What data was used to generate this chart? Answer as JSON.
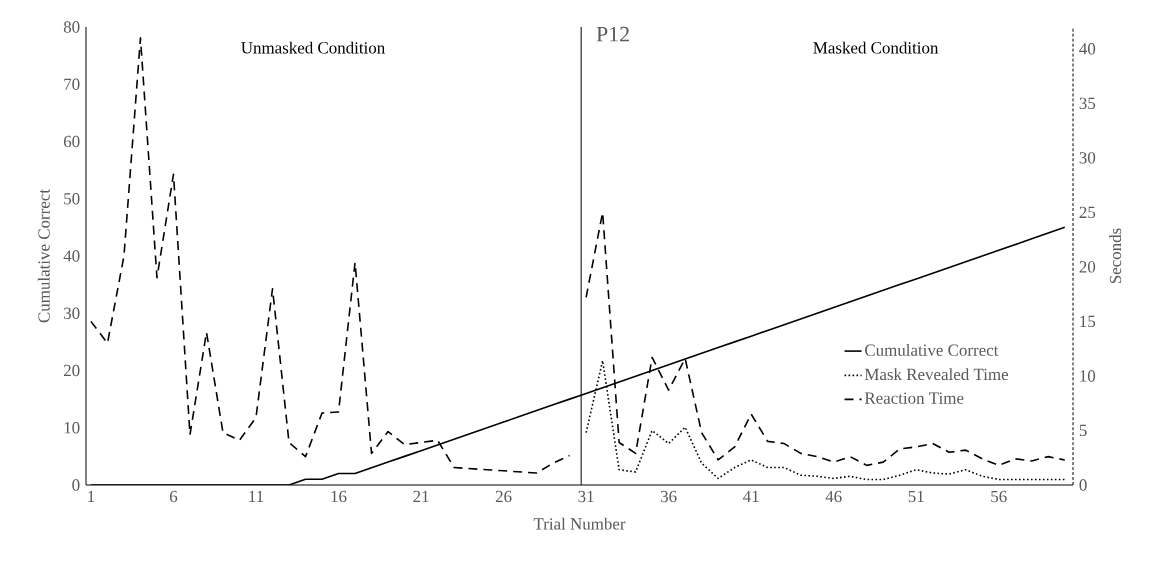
{
  "chart_data": {
    "type": "line",
    "title": "P12",
    "xlabel": "Trial Number",
    "ylabel": "Cumulative Correct",
    "y2label": "Seconds",
    "annotations": [
      "Unmasked Condition",
      "Masked Condition"
    ],
    "xlim": [
      0.7,
      60.5
    ],
    "xticks": [
      1,
      6,
      11,
      16,
      21,
      26,
      31,
      36,
      41,
      46,
      51,
      56
    ],
    "ylim": [
      0,
      80
    ],
    "yticks": [
      0,
      10,
      20,
      30,
      40,
      50,
      60,
      70,
      80
    ],
    "y2lim": [
      0,
      42
    ],
    "y2ticks": [
      0,
      5,
      10,
      15,
      20,
      25,
      30,
      35,
      40
    ],
    "ref_lines": [
      {
        "axis": "x",
        "value": 30.7,
        "color": "#000000",
        "line_style": "solid"
      }
    ],
    "legend": "right",
    "series": [
      {
        "name": "Cumulative Correct",
        "color": "#000000",
        "line_style": "solid",
        "x": [
          1,
          2,
          3,
          4,
          5,
          6,
          7,
          8,
          9,
          10,
          11,
          12,
          13,
          14,
          15,
          16,
          17,
          18,
          19,
          20,
          21,
          22,
          23,
          24,
          25,
          26,
          27,
          28,
          29,
          30,
          31,
          32,
          33,
          34,
          35,
          36,
          37,
          38,
          39,
          40,
          41,
          42,
          43,
          44,
          45,
          46,
          47,
          48,
          49,
          50,
          51,
          52,
          53,
          54,
          55,
          56,
          57,
          58,
          59,
          60
        ],
        "values": [
          0,
          0,
          0,
          0,
          0,
          0,
          0,
          0,
          0,
          0,
          0,
          0,
          0,
          1,
          1,
          2,
          2,
          3,
          4,
          5,
          6,
          7,
          8,
          9,
          10,
          11,
          12,
          13,
          14,
          15,
          16,
          17,
          18,
          19,
          20,
          21,
          22,
          23,
          24,
          25,
          26,
          27,
          28,
          29,
          30,
          31,
          32,
          33,
          34,
          35,
          36,
          37,
          38,
          39,
          40,
          41,
          42,
          43,
          44,
          45
        ]
      },
      {
        "name": "Mask Revealed Time",
        "color": "#000000",
        "line_style": "dotted",
        "axis": "y2",
        "x": [
          31,
          32,
          33,
          34,
          35,
          36,
          37,
          38,
          39,
          40,
          41,
          42,
          43,
          44,
          45,
          46,
          47,
          48,
          49,
          50,
          51,
          52,
          53,
          54,
          55,
          56,
          57,
          58,
          59,
          60
        ],
        "values": [
          4.8,
          11.4,
          1.4,
          1.2,
          5.0,
          3.8,
          5.3,
          2.0,
          0.6,
          1.6,
          2.3,
          1.6,
          1.6,
          0.9,
          0.8,
          0.6,
          0.8,
          0.5,
          0.5,
          0.9,
          1.4,
          1.1,
          1.0,
          1.4,
          0.8,
          0.5,
          0.5,
          0.5,
          0.5,
          0.5
        ]
      },
      {
        "name": "Reaction Time",
        "color": "#000000",
        "line_style": "dashed",
        "axis": "y2",
        "x": [
          1,
          2,
          3,
          4,
          5,
          6,
          7,
          8,
          9,
          10,
          11,
          12,
          13,
          14,
          15,
          16,
          17,
          18,
          19,
          20,
          21,
          22,
          23,
          24,
          25,
          26,
          27,
          28,
          29,
          30
        ],
        "values": [
          15,
          13,
          21,
          41,
          19,
          28.5,
          4.6,
          14,
          4.8,
          4.1,
          6.2,
          18,
          3.9,
          2.6,
          6.6,
          6.7,
          20.4,
          2.9,
          4.9,
          3.7,
          3.9,
          4.1,
          1.6,
          1.5,
          1.4,
          1.3,
          1.2,
          1.1,
          2.0,
          2.7
        ]
      },
      {
        "color": "#000000",
        "line_style": "dashed",
        "axis": "y2",
        "x": [
          31,
          32,
          33,
          34,
          35,
          36,
          37,
          38,
          39,
          40,
          41,
          42,
          43,
          44,
          45,
          46,
          47,
          48,
          49,
          50,
          51,
          52,
          53,
          54,
          55,
          56,
          57,
          58,
          59,
          60
        ],
        "values": [
          17.2,
          25,
          3.9,
          2.9,
          11.7,
          8.7,
          11.6,
          4.8,
          2.3,
          3.5,
          6.5,
          4,
          3.8,
          2.9,
          2.6,
          2.1,
          2.6,
          1.8,
          2.1,
          3.3,
          3.5,
          3.8,
          3.0,
          3.2,
          2.4,
          1.8,
          2.4,
          2.2,
          2.6,
          2.3
        ]
      }
    ]
  }
}
